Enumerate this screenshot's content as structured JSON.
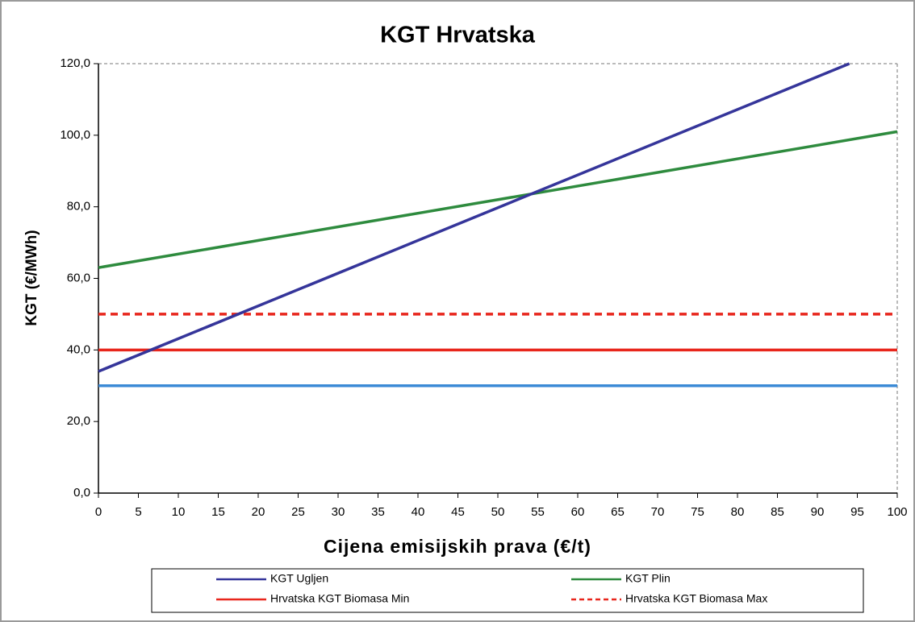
{
  "chart_data": {
    "type": "line",
    "title": "KGT Hrvatska",
    "x_label": "Cijena emisijskih prava (€/t)",
    "y_label": "KGT (€/MWh)",
    "xlim": [
      0,
      100
    ],
    "xticks": [
      0,
      5,
      10,
      15,
      20,
      25,
      30,
      35,
      40,
      45,
      50,
      55,
      60,
      65,
      70,
      75,
      80,
      85,
      90,
      95,
      100
    ],
    "ylim": [
      0,
      120
    ],
    "yticks": [
      {
        "value": 0,
        "label": "0,0"
      },
      {
        "value": 20,
        "label": "20,0"
      },
      {
        "value": 40,
        "label": "40,0"
      },
      {
        "value": 60,
        "label": "60,0"
      },
      {
        "value": 80,
        "label": "80,0"
      },
      {
        "value": 100,
        "label": "100,0"
      },
      {
        "value": 120,
        "label": "120,0"
      }
    ],
    "series": [
      {
        "name": "KGT Ugljen",
        "color": "#35359a",
        "x": [
          0,
          94
        ],
        "values": [
          34,
          120
        ]
      },
      {
        "name": "KGT Plin",
        "color": "#2e8b3e",
        "x": [
          0,
          100
        ],
        "values": [
          63,
          101
        ]
      },
      {
        "name": "Hrvatska KGT Biomasa Min",
        "color": "#e8261c",
        "x": [
          0,
          100
        ],
        "values": [
          40,
          40
        ]
      },
      {
        "name": "Hrvatska KGT Biomasa Max",
        "color": "#e8261c",
        "line_style": "dashed",
        "x": [
          0,
          100
        ],
        "values": [
          50,
          50
        ]
      },
      {
        "color": "#3b8ad6",
        "x": [
          0,
          100
        ],
        "values": [
          30,
          30
        ]
      }
    ]
  }
}
